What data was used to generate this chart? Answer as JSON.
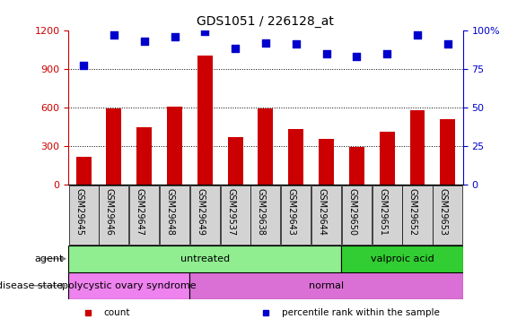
{
  "title": "GDS1051 / 226128_at",
  "samples": [
    "GSM29645",
    "GSM29646",
    "GSM29647",
    "GSM29648",
    "GSM29649",
    "GSM29537",
    "GSM29638",
    "GSM29643",
    "GSM29644",
    "GSM29650",
    "GSM29651",
    "GSM29652",
    "GSM29653"
  ],
  "counts": [
    215,
    590,
    450,
    610,
    1000,
    370,
    590,
    430,
    355,
    295,
    415,
    580,
    510
  ],
  "percentiles": [
    77,
    97,
    93,
    96,
    99,
    88,
    92,
    91,
    85,
    83,
    85,
    97,
    91
  ],
  "bar_color": "#cc0000",
  "dot_color": "#0000cc",
  "ylim_left": [
    0,
    1200
  ],
  "ylim_right": [
    0,
    100
  ],
  "yticks_left": [
    0,
    300,
    600,
    900,
    1200
  ],
  "yticks_right": [
    0,
    25,
    50,
    75,
    100
  ],
  "agent_groups": [
    {
      "label": "untreated",
      "start": 0,
      "end": 9,
      "color": "#90ee90"
    },
    {
      "label": "valproic acid",
      "start": 9,
      "end": 13,
      "color": "#32cd32"
    }
  ],
  "disease_groups": [
    {
      "label": "polycystic ovary syndrome",
      "start": 0,
      "end": 4,
      "color": "#ee82ee"
    },
    {
      "label": "normal",
      "start": 4,
      "end": 13,
      "color": "#da70d6"
    }
  ],
  "legend_items": [
    {
      "label": "count",
      "color": "#cc0000"
    },
    {
      "label": "percentile rank within the sample",
      "color": "#0000cc"
    }
  ],
  "tick_bg_color": "#d3d3d3",
  "background_color": "#ffffff"
}
